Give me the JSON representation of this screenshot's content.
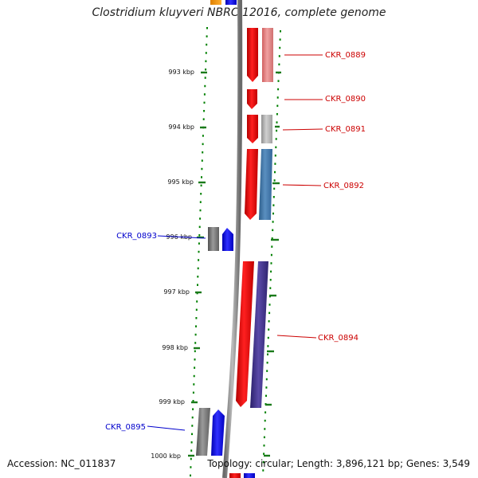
{
  "title": "Clostridium kluyveri NBRC 12016, complete genome",
  "footer": {
    "accession": "Accession: NC_011837",
    "summary": "Topology: circular; Length: 3,896,121 bp; Genes: 3,549"
  },
  "scale_labels": [
    "993 kbp",
    "994 kbp",
    "995 kbp",
    "996 kbp",
    "997 kbp",
    "998 kbp",
    "999 kbp",
    "1000 kbp"
  ],
  "genes": [
    {
      "id": "CKR_0889",
      "strand": "forward",
      "color": "#cc0000"
    },
    {
      "id": "CKR_0890",
      "strand": "forward",
      "color": "#cc0000"
    },
    {
      "id": "CKR_0891",
      "strand": "forward",
      "color": "#cc0000"
    },
    {
      "id": "CKR_0892",
      "strand": "forward",
      "color": "#cc0000"
    },
    {
      "id": "CKR_0893",
      "strand": "reverse",
      "color": "#0000cc"
    },
    {
      "id": "CKR_0894",
      "strand": "forward",
      "color": "#cc0000"
    },
    {
      "id": "CKR_0895",
      "strand": "reverse",
      "color": "#0000cc"
    }
  ],
  "colors": {
    "forward_gene": "#ff0000",
    "reverse_gene": "#0000ff",
    "forward_label": "#cc0000",
    "reverse_label": "#0000cc",
    "gc_dots": "#008000",
    "backbone": "#808080"
  }
}
